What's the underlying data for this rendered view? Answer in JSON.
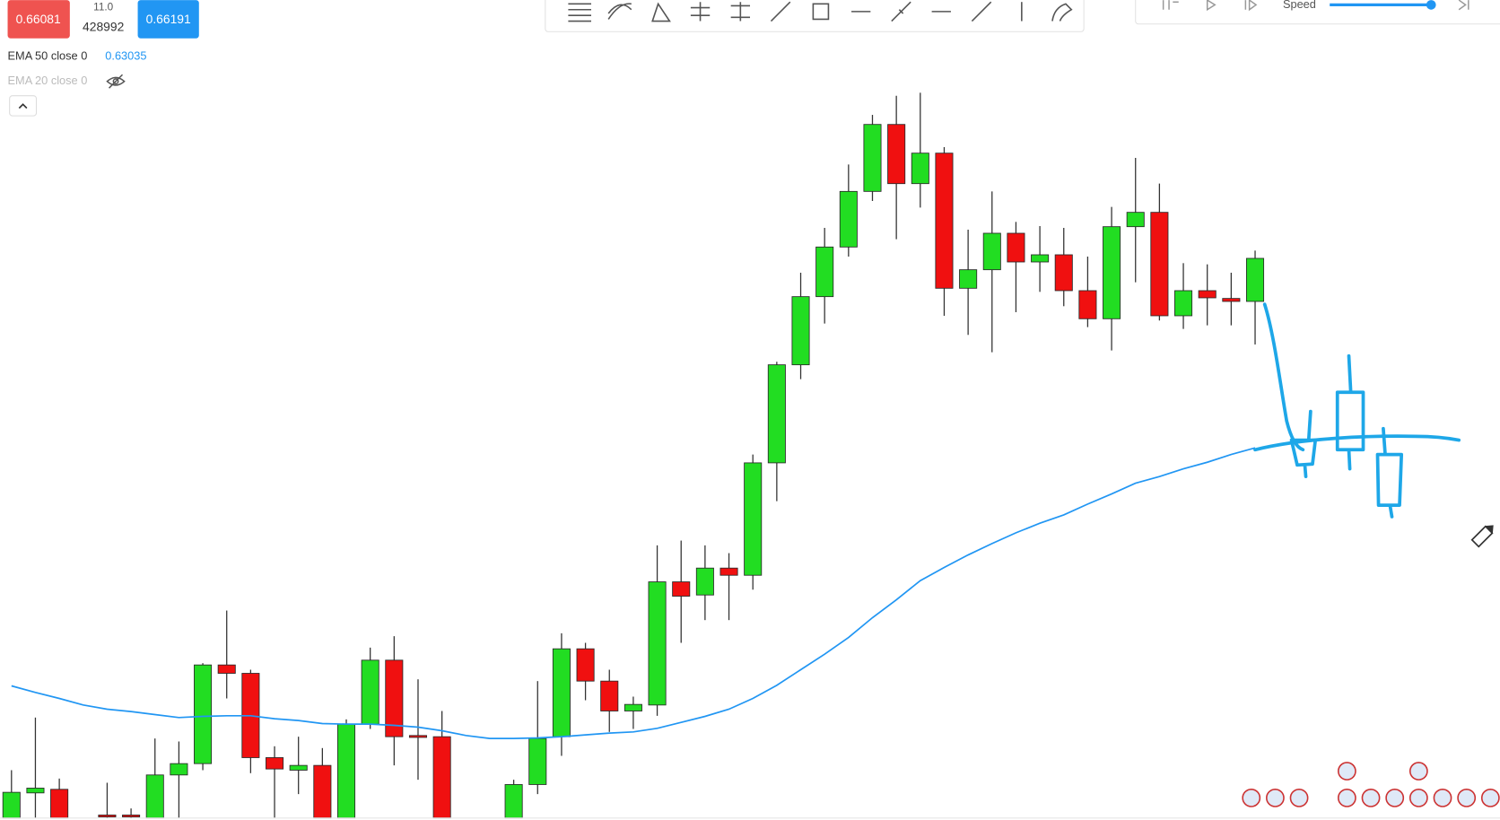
{
  "header": {
    "sell": "0.66081",
    "spread": "11.0",
    "volume": "428992",
    "buy": "0.66191"
  },
  "indicators": [
    {
      "label": "EMA 50 close 0",
      "value": "0.63035"
    },
    {
      "label": "EMA 20 close 0"
    }
  ],
  "replay": {
    "speed_label": "Speed"
  },
  "chart_data": {
    "type": "candlestick",
    "ylim": [
      0.5682,
      0.705
    ],
    "up_color": "#22dd22",
    "down_color": "#f01010",
    "open": [
      0.5682,
      0.5724,
      0.573,
      null,
      0.5687,
      0.5687,
      0.5682,
      0.5754,
      0.5773,
      0.5938,
      0.5924,
      0.5783,
      0.5762,
      0.577,
      0.5682,
      0.5839,
      0.5946,
      0.582,
      0.5818,
      null,
      null,
      0.5682,
      0.5738,
      0.5818,
      0.5965,
      0.5911,
      0.5861,
      0.5871,
      0.6077,
      0.6055,
      0.61,
      0.6088,
      0.6276,
      0.644,
      0.6554,
      0.6637,
      0.673,
      0.6842,
      0.6743,
      0.6794,
      0.6568,
      0.6599,
      0.666,
      0.6612,
      0.6624,
      0.6564,
      0.6517,
      0.6671,
      0.6695,
      0.6522,
      0.6564,
      0.6551,
      0.6546
    ],
    "high": [
      0.5762,
      0.585,
      0.5748,
      null,
      0.5741,
      0.5698,
      0.5815,
      0.581,
      0.5941,
      0.6029,
      0.593,
      0.5802,
      0.5818,
      0.5799,
      0.5847,
      0.5967,
      0.5986,
      0.5914,
      0.5861,
      null,
      null,
      0.5746,
      0.5911,
      0.5991,
      0.5975,
      0.593,
      0.5885,
      0.6138,
      0.6146,
      0.6138,
      0.6125,
      0.629,
      0.6445,
      0.6594,
      0.6669,
      0.6775,
      0.6858,
      0.689,
      0.6895,
      0.6804,
      0.6666,
      0.673,
      0.6679,
      0.6672,
      0.6669,
      0.6621,
      0.6704,
      0.6786,
      0.6743,
      0.661,
      0.6608,
      0.6594,
      0.6631
    ],
    "low": [
      0.5682,
      0.5682,
      0.5682,
      null,
      0.5682,
      0.5682,
      0.5682,
      0.5682,
      0.5762,
      0.5882,
      0.5757,
      0.5682,
      0.5722,
      0.5682,
      0.5682,
      0.5831,
      0.577,
      0.5746,
      0.5682,
      null,
      null,
      0.5682,
      0.5722,
      0.5786,
      0.5879,
      0.5826,
      0.5831,
      0.5853,
      0.5975,
      0.6013,
      0.6013,
      0.6064,
      0.6212,
      0.6416,
      0.6509,
      0.6621,
      0.6714,
      0.665,
      0.6703,
      0.6522,
      0.649,
      0.6461,
      0.6528,
      0.6562,
      0.6538,
      0.6503,
      0.6464,
      0.6578,
      0.6514,
      0.65,
      0.6506,
      0.6506,
      0.6474
    ],
    "close": [
      0.5725,
      0.5732,
      0.5682,
      null,
      0.5685,
      0.5685,
      0.5754,
      0.5773,
      0.5938,
      0.5924,
      0.5783,
      0.5764,
      0.577,
      0.5682,
      0.5839,
      0.5946,
      0.5818,
      0.5818,
      0.5682,
      null,
      null,
      0.5738,
      0.5815,
      0.5965,
      0.5911,
      0.5861,
      0.5872,
      0.6077,
      0.6053,
      0.61,
      0.6088,
      0.6276,
      0.644,
      0.6554,
      0.6637,
      0.673,
      0.6842,
      0.6743,
      0.6794,
      0.6568,
      0.6599,
      0.666,
      0.6612,
      0.6624,
      0.6564,
      0.6517,
      0.6671,
      0.6695,
      0.6522,
      0.6564,
      0.6552,
      0.6546,
      0.6618
    ],
    "ema_color": "#2196f3",
    "ema_values": [
      0.5903,
      0.5892,
      0.5882,
      0.5871,
      0.5864,
      0.586,
      0.5855,
      0.585,
      0.5852,
      0.5853,
      0.5853,
      0.5848,
      0.5845,
      0.584,
      0.5839,
      0.5839,
      0.5837,
      0.5834,
      0.5828,
      0.582,
      0.5815,
      0.5815,
      0.5816,
      0.5818,
      0.5821,
      0.5824,
      0.5826,
      0.5832,
      0.5842,
      0.5852,
      0.5864,
      0.5882,
      0.5904,
      0.593,
      0.5956,
      0.5984,
      0.6017,
      0.6047,
      0.6079,
      0.6101,
      0.6122,
      0.6141,
      0.6159,
      0.6175,
      0.6189,
      0.6207,
      0.6224,
      0.6242,
      0.6253,
      0.6266,
      0.6277,
      0.629,
      0.6301
    ]
  }
}
